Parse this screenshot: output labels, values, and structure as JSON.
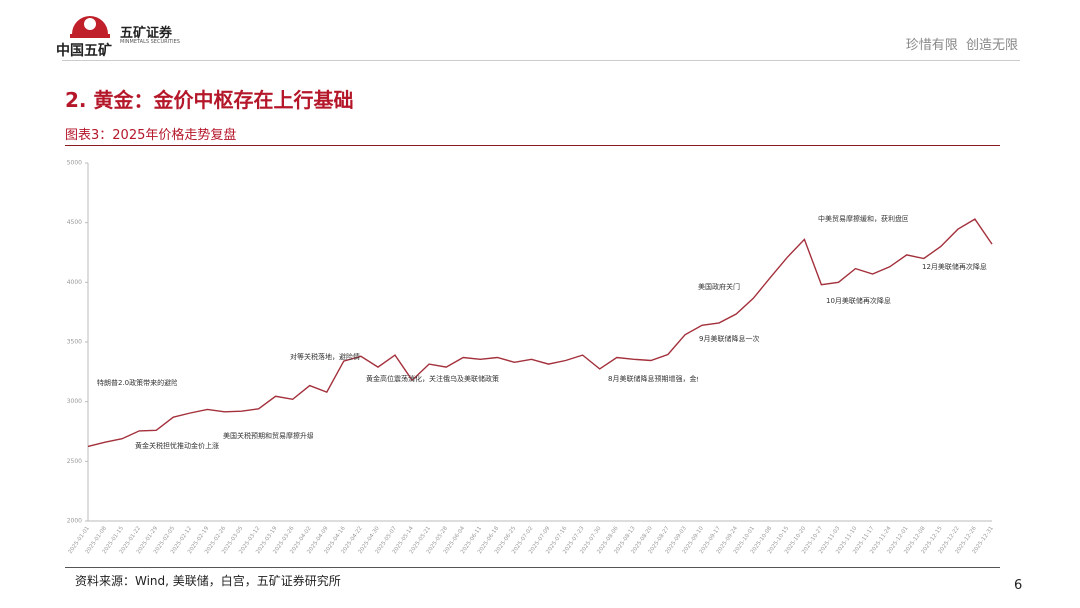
{
  "header": {
    "brand": "中国五矿",
    "company": "五矿证券",
    "company_en": "MINMETALS SECURITIES",
    "slogan": "珍惜有限  创造无限"
  },
  "section_title": "2. 黄金：金价中枢存在上行基础",
  "figure_title": "图表3：2025年价格走势复盘",
  "source": "资料来源：Wind, 美联储，白宫，五矿证券研究所",
  "page_number": "6",
  "chart_data": {
    "type": "line",
    "categories": [
      "2025-01-01",
      "2025-01-08",
      "2025-01-15",
      "2025-01-22",
      "2025-01-29",
      "2025-02-05",
      "2025-02-12",
      "2025-02-19",
      "2025-02-26",
      "2025-03-05",
      "2025-03-12",
      "2025-03-19",
      "2025-03-26",
      "2025-04-02",
      "2025-04-09",
      "2025-04-16",
      "2025-04-22",
      "2025-04-30",
      "2025-05-07",
      "2025-05-14",
      "2025-05-21",
      "2025-05-28",
      "2025-06-04",
      "2025-06-11",
      "2025-06-18",
      "2025-06-25",
      "2025-07-02",
      "2025-07-09",
      "2025-07-16",
      "2025-07-23",
      "2025-07-30",
      "2025-08-06",
      "2025-08-13",
      "2025-08-20",
      "2025-08-27",
      "2025-09-03",
      "2025-09-10",
      "2025-09-17",
      "2025-09-24",
      "2025-10-01",
      "2025-10-08",
      "2025-10-15",
      "2025-10-20",
      "2025-10-27",
      "2025-11-03",
      "2025-11-10",
      "2025-11-17",
      "2025-11-24",
      "2025-12-01",
      "2025-12-08",
      "2025-12-15",
      "2025-12-22",
      "2025-12-26",
      "2025-12-31"
    ],
    "series": [
      {
        "color": "#a3303b",
        "values": [
          2625,
          2660,
          2690,
          2755,
          2760,
          2870,
          2905,
          2935,
          2915,
          2920,
          2940,
          3045,
          3020,
          3135,
          3080,
          3340,
          3380,
          3290,
          3390,
          3180,
          3315,
          3290,
          3370,
          3355,
          3370,
          3330,
          3355,
          3315,
          3345,
          3390,
          3275,
          3370,
          3355,
          3345,
          3395,
          3560,
          3640,
          3660,
          3735,
          3865,
          4040,
          4210,
          4360,
          3980,
          4000,
          4115,
          4070,
          4130,
          4230,
          4200,
          4300,
          4445,
          4530,
          4320
        ]
      }
    ],
    "ylim": [
      2000,
      5000
    ],
    "yticks": [
      2000,
      2500,
      3000,
      3500,
      4000,
      4500,
      5000
    ],
    "annotations": [
      "特朗普2.0政策带来的避险需求推动金价上涨",
      "黄金关税担忧推动金价上涨",
      "美国关税预期和贸易摩擦升级",
      "对等关税落地，避险情绪升温",
      "黄金高位震荡消化，关注俄乌及美联储政策",
      "8月美联储降息预期增强，金价突破震荡区间",
      "9月美联储降息一次",
      "美国政府关门",
      "中美贸易摩擦缓和，获利盘回吐导致回调",
      "10月美联储再次降息",
      "12月美联储再次降息"
    ]
  }
}
